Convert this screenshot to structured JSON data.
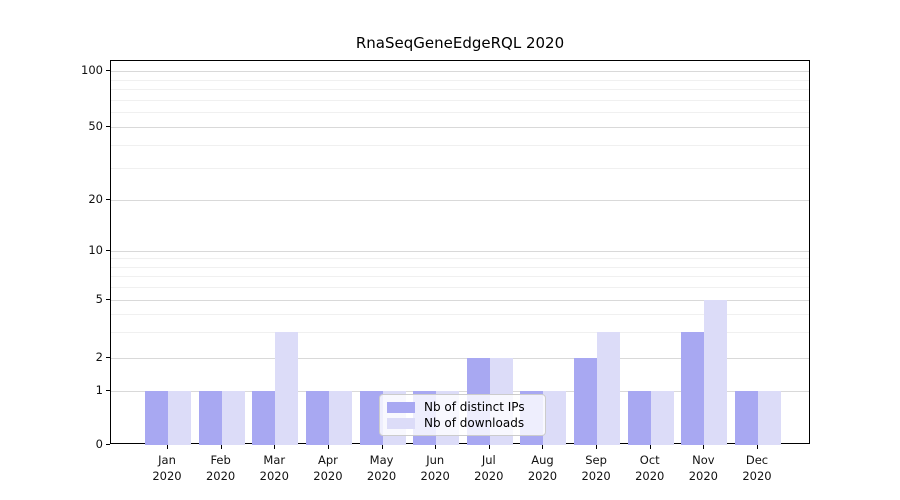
{
  "title": "RnaSeqGeneEdgeRQL 2020",
  "colors": {
    "distinct_ips": "#a8a8f2",
    "downloads": "#dcdcf8",
    "grid_major": "#d9d9d9",
    "grid_minor": "#f0f0f0",
    "axis": "#000000"
  },
  "legend": {
    "items": [
      {
        "label": "Nb of distinct IPs",
        "color_key": "distinct_ips"
      },
      {
        "label": "Nb of downloads",
        "color_key": "downloads"
      }
    ]
  },
  "chart_data": {
    "type": "bar",
    "title": "RnaSeqGeneEdgeRQL 2020",
    "categories": [
      "Jan 2020",
      "Feb 2020",
      "Mar 2020",
      "Apr 2020",
      "May 2020",
      "Jun 2020",
      "Jul 2020",
      "Aug 2020",
      "Sep 2020",
      "Oct 2020",
      "Nov 2020",
      "Dec 2020"
    ],
    "series": [
      {
        "name": "Nb of distinct IPs",
        "color_key": "distinct_ips",
        "values": [
          1,
          1,
          1,
          1,
          1,
          1,
          2,
          1,
          2,
          1,
          3,
          1
        ]
      },
      {
        "name": "Nb of downloads",
        "color_key": "downloads",
        "values": [
          1,
          1,
          3,
          1,
          1,
          1,
          2,
          1,
          3,
          1,
          5,
          1
        ]
      }
    ],
    "xlabel": "",
    "ylabel": "",
    "yscale": "log-like",
    "y_ticks": [
      0,
      1,
      2,
      5,
      10,
      20,
      50,
      100
    ],
    "y_minor_ticks": [
      3,
      4,
      6,
      7,
      8,
      9,
      30,
      40,
      60,
      70,
      80,
      90
    ],
    "ylim": [
      0,
      100
    ],
    "grid": "on",
    "legend_position": "lower center (inside plot)"
  }
}
